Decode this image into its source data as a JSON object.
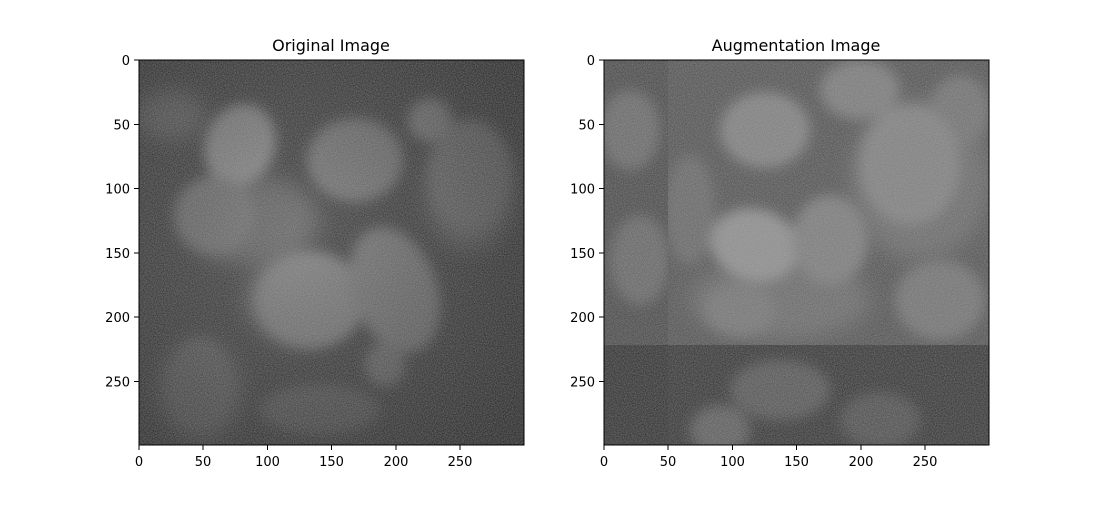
{
  "figure": {
    "panels": [
      {
        "title": "Original Image",
        "x_ticks": [
          "0",
          "50",
          "100",
          "150",
          "200",
          "250"
        ],
        "y_ticks": [
          "0",
          "50",
          "100",
          "150",
          "200",
          "250"
        ]
      },
      {
        "title": "Augmentation Image",
        "x_ticks": [
          "0",
          "50",
          "100",
          "150",
          "200",
          "250"
        ],
        "y_ticks": [
          "0",
          "50",
          "100",
          "150",
          "200",
          "250"
        ]
      }
    ],
    "image_extent": [
      0,
      300,
      0,
      300
    ],
    "colormap": "gray",
    "augmentation": {
      "crop_split_x": 50,
      "crop_split_y": 222
    }
  }
}
